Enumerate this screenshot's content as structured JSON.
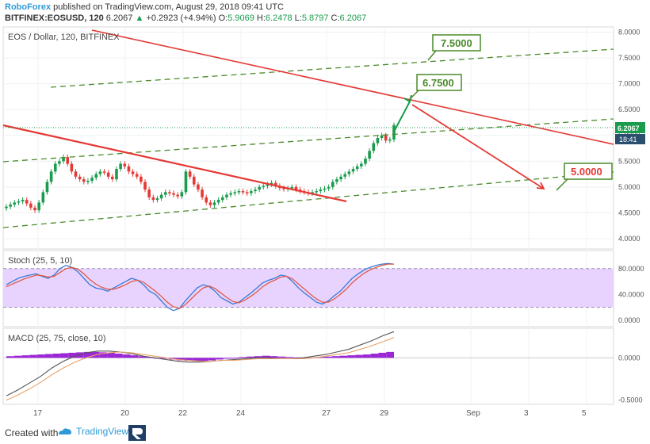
{
  "header": {
    "author": "RoboForex",
    "published_text": "published on TradingView.com, August 29, 2018 09:41 UTC",
    "symbol": "BITFINEX:EOSUSD, 120",
    "last": "6.2067",
    "change": "+0.2923 (+4.94%)",
    "open_label": "O:",
    "open": "5.9069",
    "high_label": "H:",
    "high": "6.2478",
    "low_label": "L:",
    "low": "5.8797",
    "close_label": "C:",
    "close": "6.2067"
  },
  "footer": {
    "created_with": "Created with",
    "tradingview": "TradingView"
  },
  "colors": {
    "up": "#1a9b4d",
    "down": "#e53935",
    "trend": "#e53935",
    "channel": "#4a8a2a",
    "stoch_fill": "#e8d3ff"
  },
  "chart_data": [
    {
      "type": "candlestick",
      "title": "EOS / Dollar, 120, BITFINEX",
      "y_ticks": [
        "8.0000",
        "7.5000",
        "7.0000",
        "6.5000",
        "6.0000",
        "5.5000",
        "5.0000",
        "4.5000",
        "4.0000"
      ],
      "ylim": [
        3.8,
        8.1
      ],
      "x_ticks": [
        "17",
        "20",
        "22",
        "24",
        "27",
        "29",
        "Sep",
        "3",
        "5"
      ],
      "price_label": "6.2067",
      "countdown_label": "18:41",
      "annotations": [
        {
          "label": "7.5000",
          "value": 7.5,
          "color": "#4a8a2a"
        },
        {
          "label": "6.7500",
          "value": 6.75,
          "color": "#4a8a2a"
        },
        {
          "label": "5.0000",
          "value": 5.0,
          "color": "#e53935"
        }
      ],
      "closes": [
        4.62,
        4.66,
        4.7,
        4.72,
        4.75,
        4.68,
        4.6,
        4.55,
        4.7,
        4.9,
        5.1,
        5.3,
        5.45,
        5.5,
        5.58,
        5.45,
        5.3,
        5.2,
        5.15,
        5.1,
        5.12,
        5.18,
        5.25,
        5.3,
        5.28,
        5.2,
        5.15,
        5.35,
        5.45,
        5.4,
        5.3,
        5.25,
        5.2,
        5.1,
        4.95,
        4.8,
        4.75,
        4.78,
        4.85,
        4.9,
        4.88,
        4.85,
        4.82,
        4.9,
        5.3,
        5.2,
        5.05,
        4.95,
        4.8,
        4.7,
        4.65,
        4.7,
        4.75,
        4.8,
        4.85,
        4.88,
        4.9,
        4.92,
        4.9,
        4.88,
        4.92,
        4.95,
        5.0,
        5.02,
        5.05,
        5.08,
        5.02,
        4.98,
        4.96,
        4.98,
        5.0,
        4.95,
        4.92,
        4.9,
        4.88,
        4.9,
        4.92,
        4.95,
        4.97,
        5.0,
        5.1,
        5.15,
        5.2,
        5.25,
        5.3,
        5.35,
        5.4,
        5.45,
        5.55,
        5.7,
        5.85,
        5.95,
        6.0,
        5.9,
        5.92,
        6.2
      ]
    },
    {
      "type": "line",
      "title": "Stoch (25, 5, 10)",
      "y_ticks": [
        "80.0000",
        "40.0000",
        "0.0000"
      ],
      "ylim": [
        -10,
        108
      ],
      "band": [
        20,
        80
      ],
      "series": [
        {
          "values": [
            55,
            60,
            65,
            68,
            70,
            72,
            68,
            65,
            70,
            80,
            85,
            82,
            75,
            65,
            55,
            50,
            48,
            45,
            50,
            55,
            60,
            65,
            62,
            55,
            45,
            40,
            30,
            20,
            15,
            18,
            30,
            40,
            50,
            55,
            52,
            45,
            35,
            30,
            25,
            28,
            35,
            42,
            50,
            58,
            62,
            65,
            70,
            68,
            60,
            50,
            42,
            35,
            28,
            25,
            30,
            38,
            45,
            55,
            65,
            72,
            78,
            82,
            85,
            87,
            88,
            87
          ]
        },
        {
          "values": [
            52,
            56,
            60,
            64,
            67,
            70,
            69,
            67,
            68,
            74,
            80,
            82,
            79,
            72,
            63,
            56,
            51,
            48,
            48,
            51,
            55,
            60,
            62,
            59,
            52,
            45,
            37,
            28,
            21,
            18,
            24,
            33,
            42,
            50,
            53,
            49,
            42,
            35,
            29,
            27,
            31,
            37,
            44,
            52,
            58,
            62,
            67,
            68,
            64,
            56,
            48,
            40,
            33,
            28,
            28,
            33,
            40,
            48,
            58,
            66,
            73,
            78,
            82,
            85,
            87,
            87
          ]
        }
      ]
    },
    {
      "type": "bar",
      "title": "MACD (25, 75, close, 10)",
      "y_ticks": [
        "0.0000",
        "-0.5000"
      ],
      "ylim": [
        -0.55,
        0.35
      ],
      "histogram": [
        0.02,
        0.025,
        0.03,
        0.035,
        0.04,
        0.045,
        0.05,
        0.055,
        0.06,
        0.065,
        0.07,
        0.07,
        0.065,
        0.06,
        0.05,
        0.04,
        0.03,
        0.02,
        0.01,
        0.0,
        -0.01,
        -0.02,
        -0.03,
        -0.035,
        -0.04,
        -0.035,
        -0.03,
        -0.02,
        -0.01,
        0.0,
        0.01,
        0.015,
        0.02,
        0.025,
        0.02,
        0.015,
        0.01,
        0.005,
        0.0,
        0.005,
        0.01,
        0.015,
        0.02,
        0.025,
        0.03,
        0.035,
        0.04,
        0.05,
        0.06,
        0.07
      ],
      "series": [
        {
          "values": [
            -0.45,
            -0.38,
            -0.3,
            -0.22,
            -0.12,
            -0.04,
            0.02,
            0.06,
            0.08,
            0.08,
            0.07,
            0.05,
            0.02,
            0.0,
            -0.02,
            -0.04,
            -0.05,
            -0.05,
            -0.04,
            -0.03,
            -0.02,
            -0.01,
            0.0,
            0.0,
            -0.01,
            -0.01,
            0.0,
            0.02,
            0.04,
            0.07,
            0.1,
            0.15,
            0.2,
            0.26,
            0.31
          ]
        },
        {
          "values": [
            -0.5,
            -0.44,
            -0.37,
            -0.29,
            -0.2,
            -0.12,
            -0.05,
            0.0,
            0.04,
            0.06,
            0.07,
            0.06,
            0.04,
            0.02,
            0.0,
            -0.02,
            -0.03,
            -0.04,
            -0.04,
            -0.03,
            -0.03,
            -0.02,
            -0.01,
            -0.01,
            -0.01,
            -0.01,
            -0.01,
            0.0,
            0.02,
            0.04,
            0.06,
            0.1,
            0.14,
            0.19,
            0.24
          ]
        }
      ]
    }
  ]
}
